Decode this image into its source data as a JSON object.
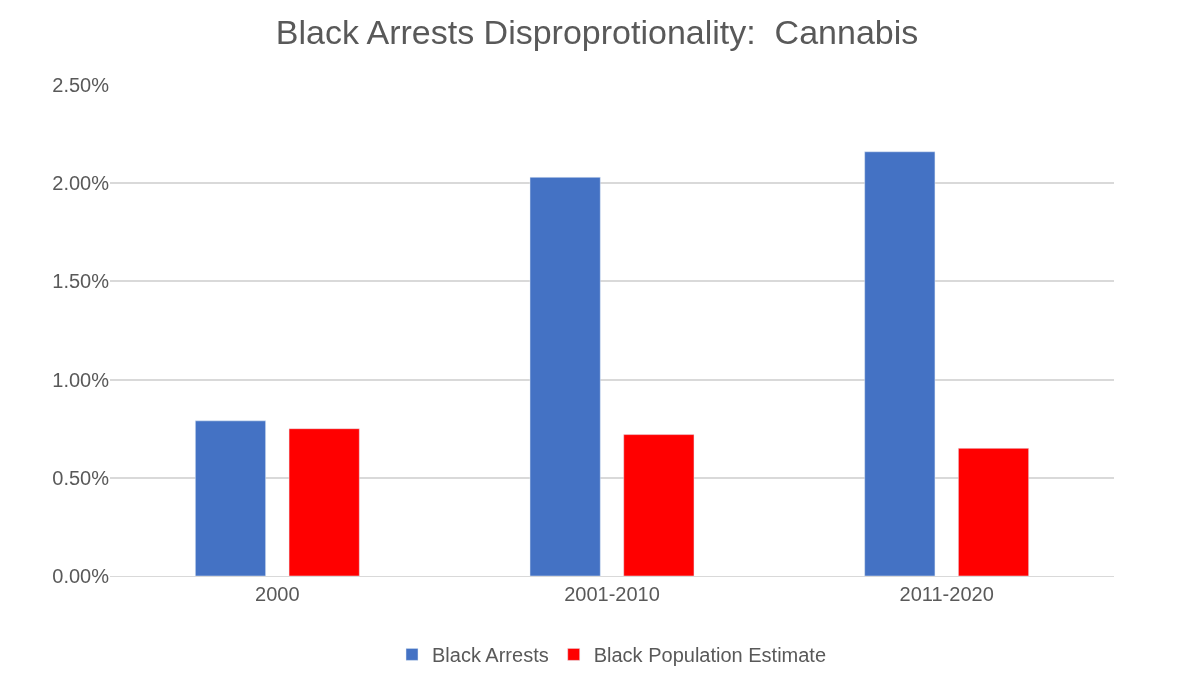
{
  "chart_data": {
    "type": "bar",
    "title": "Black Arrests Disproprotionality:  Cannabis",
    "categories": [
      "2000",
      "2001-2010",
      "2011-2020"
    ],
    "series": [
      {
        "name": "Black Arrests",
        "color": "#4472c4",
        "values": [
          0.79,
          2.03,
          2.16
        ]
      },
      {
        "name": "Black Population Estimate",
        "color": "#ff0000",
        "values": [
          0.75,
          0.72,
          0.65
        ]
      }
    ],
    "ylim": [
      0,
      2.5
    ],
    "yticks": [
      {
        "value": 0,
        "label": "0.00%"
      },
      {
        "value": 0.5,
        "label": "0.50%"
      },
      {
        "value": 1,
        "label": "1.00%"
      },
      {
        "value": 1.5,
        "label": "1.50%"
      },
      {
        "value": 2,
        "label": "2.00%"
      },
      {
        "value": 2.5,
        "label": "2.50%"
      }
    ],
    "grid": "y",
    "legend": "bottom"
  }
}
